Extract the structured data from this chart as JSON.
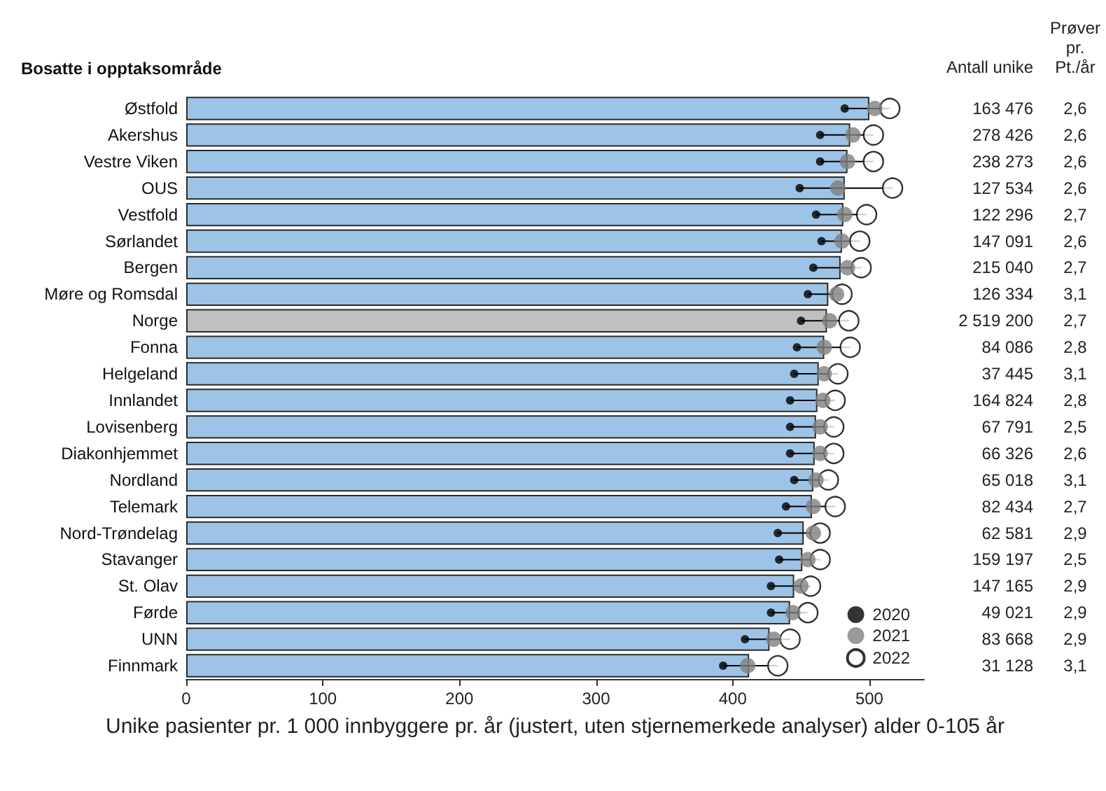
{
  "chart_data": {
    "type": "bar",
    "orientation": "horizontal",
    "title": "Bosatte i opptaksområde",
    "xlabel": "Unike pasienter pr. 1 000 innbyggere pr. år (justert, uten stjernemerkede analyser) alder 0-105 år",
    "categories": [
      "Østfold",
      "Akershus",
      "Vestre Viken",
      "OUS",
      "Vestfold",
      "Sørlandet",
      "Bergen",
      "Møre og Romsdal",
      "Norge",
      "Fonna",
      "Helgeland",
      "Innlandet",
      "Lovisenberg",
      "Diakonhjemmet",
      "Nordland",
      "Telemark",
      "Nord-Trøndelag",
      "Stavanger",
      "St. Olav",
      "Førde",
      "UNN",
      "Finnmark"
    ],
    "series": [
      {
        "colors": [
          "#9dc3e6",
          "#9dc3e6",
          "#9dc3e6",
          "#9dc3e6",
          "#9dc3e6",
          "#9dc3e6",
          "#9dc3e6",
          "#9dc3e6",
          "#c0c0c0",
          "#9dc3e6",
          "#9dc3e6",
          "#9dc3e6",
          "#9dc3e6",
          "#9dc3e6",
          "#9dc3e6",
          "#9dc3e6",
          "#9dc3e6",
          "#9dc3e6",
          "#9dc3e6",
          "#9dc3e6",
          "#9dc3e6",
          "#9dc3e6"
        ],
        "values": [
          500,
          486,
          484,
          482,
          481,
          480,
          479,
          470,
          469,
          467,
          463,
          462,
          461,
          460,
          459,
          458,
          452,
          451,
          445,
          442,
          427,
          412
        ]
      },
      {
        "type": "scatter",
        "name": "2020",
        "color": "#000000",
        "values": [
          482,
          464,
          464,
          449,
          461,
          465,
          459,
          455,
          450,
          447,
          445,
          442,
          442,
          442,
          445,
          439,
          433,
          434,
          428,
          428,
          409,
          393
        ]
      },
      {
        "type": "scatter",
        "name": "2021",
        "color": "#808080",
        "values": [
          504,
          488,
          484,
          477,
          482,
          480,
          484,
          476,
          471,
          467,
          467,
          466,
          464,
          464,
          461,
          459,
          459,
          455,
          450,
          444,
          430,
          411
        ]
      },
      {
        "type": "scatter",
        "name": "2022",
        "color": "#000000",
        "values": [
          515,
          503,
          503,
          517,
          498,
          493,
          494,
          480,
          485,
          486,
          477,
          475,
          474,
          474,
          470,
          475,
          464,
          464,
          457,
          455,
          442,
          433
        ]
      }
    ],
    "xlim": [
      0,
      540
    ],
    "xticks": [
      0,
      100,
      200,
      300,
      400,
      500
    ],
    "grid": false,
    "legend": "bottom right",
    "marker": "circle",
    "annotations": [
      "Antall unike",
      "Prøver pr. Pt./år",
      "163 476",
      "2,6",
      "278 426",
      "2,6",
      "238 273",
      "2,6",
      "127 534",
      "2,6",
      "122 296",
      "2,7",
      "147 091",
      "2,6",
      "215 040",
      "2,7",
      "126 334",
      "3,1",
      "2 519 200",
      "2,7",
      "84 086",
      "2,8",
      "37 445",
      "3,1",
      "164 824",
      "2,8",
      "67 791",
      "2,5",
      "66 326",
      "2,6",
      "65 018",
      "3,1",
      "82 434",
      "2,7",
      "62 581",
      "2,9",
      "159 197",
      "2,5",
      "147 165",
      "2,9",
      "49 021",
      "2,9",
      "83 668",
      "2,9",
      "31 128",
      "3,1"
    ]
  }
}
